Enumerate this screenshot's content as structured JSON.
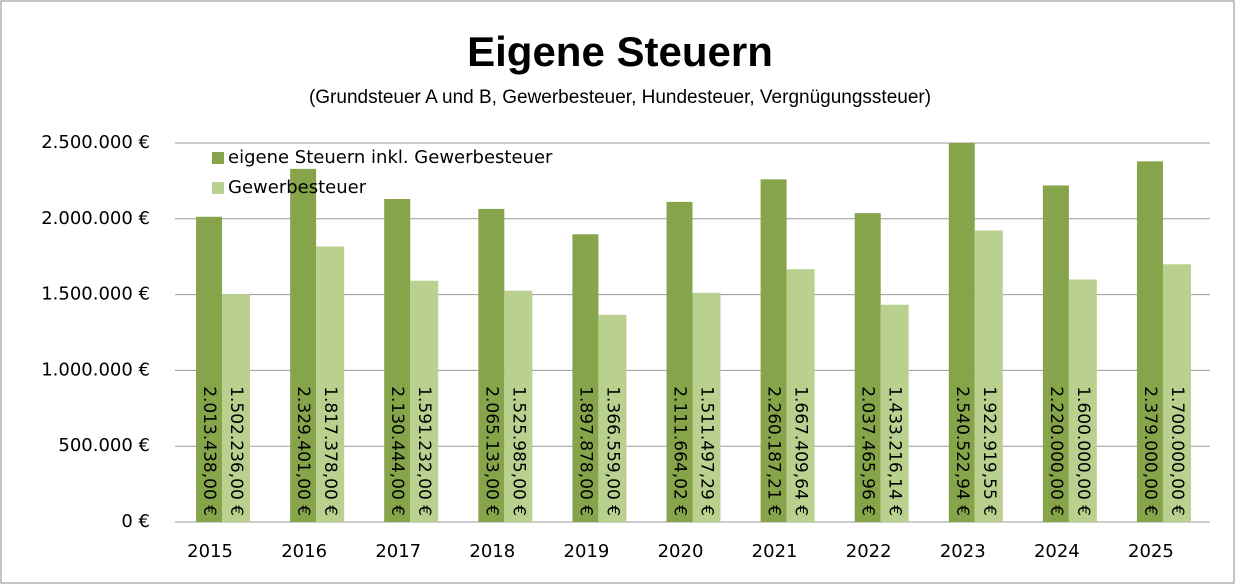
{
  "chart_data": {
    "type": "bar",
    "title": "Eigene Steuern",
    "subtitle": "(Grundsteuer A und B, Gewerbesteuer, Hundesteuer, Vergnügungssteuer)",
    "categories": [
      "2015",
      "2016",
      "2017",
      "2018",
      "2019",
      "2020",
      "2021",
      "2022",
      "2023",
      "2024",
      "2025"
    ],
    "series": [
      {
        "name": "eigene Steuern inkl. Gewerbesteuer",
        "color": "#86a44a",
        "values": [
          2013438.0,
          2329401.0,
          2130444.0,
          2065133.0,
          1897878.0,
          2111664.02,
          2260187.21,
          2037465.96,
          2540522.94,
          2220000.0,
          2379000.0
        ],
        "value_labels": [
          "2.013.438,00 €",
          "2.329.401,00 €",
          "2.130.444,00 €",
          "2.065.133,00 €",
          "1.897.878,00 €",
          "2.111.664,02 €",
          "2.260.187,21 €",
          "2.037.465,96 €",
          "2.540.522,94 €",
          "2.220.000,00 €",
          "2.379.000,00 €"
        ]
      },
      {
        "name": "Gewerbesteuer",
        "color": "#b9d08f",
        "values": [
          1502236.0,
          1817378.0,
          1591232.0,
          1525985.0,
          1366559.0,
          1511497.29,
          1667409.64,
          1433216.14,
          1922919.55,
          1600000.0,
          1700000.0
        ],
        "value_labels": [
          "1.502.236,00 €",
          "1.817.378,00 €",
          "1.591.232,00 €",
          "1.525.985,00 €",
          "1.366.559,00 €",
          "1.511.497,29 €",
          "1.667.409,64 €",
          "1.433.216,14 €",
          "1.922.919,55 €",
          "1.600.000,00 €",
          "1.700.000,00 €"
        ]
      }
    ],
    "ylim": [
      0,
      2500000
    ],
    "yticks": [
      {
        "value": 0,
        "label": "0 €"
      },
      {
        "value": 500000,
        "label": "500.000 €"
      },
      {
        "value": 1000000,
        "label": "1.000.000 €"
      },
      {
        "value": 1500000,
        "label": "1.500.000 €"
      },
      {
        "value": 2000000,
        "label": "2.000.000 €"
      },
      {
        "value": 2500000,
        "label": "2.500.000 €"
      }
    ],
    "grid": true,
    "legend": "top-left"
  }
}
